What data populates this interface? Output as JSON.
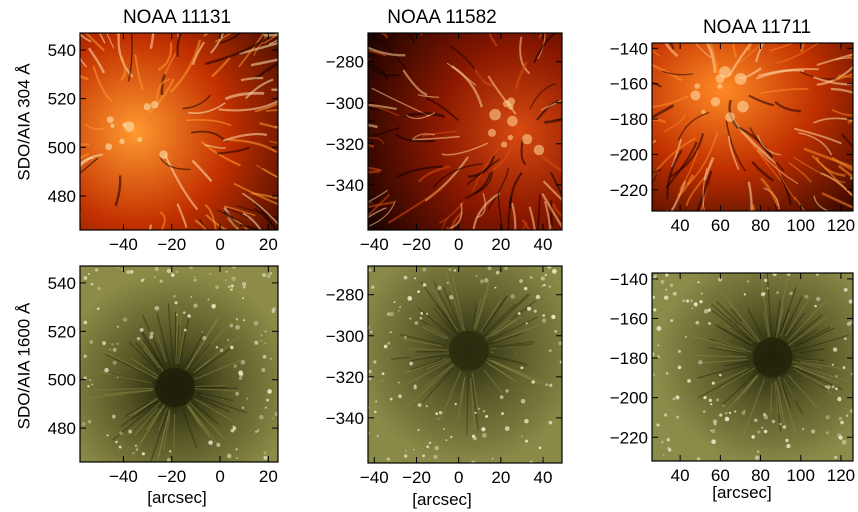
{
  "figure": {
    "row_labels": [
      "SDO/AIA 304 Å",
      "SDO/AIA 1600 Å"
    ],
    "column_titles": [
      "NOAA 11131",
      "NOAA 11582",
      "NOAA 11711"
    ],
    "xlabel": "[arcsec]"
  },
  "chart_data": [
    {
      "type": "heatmap",
      "title": "NOAA 11131",
      "channel": "SDO/AIA 304 Å",
      "colormap": "sdoaia304",
      "xlabel": "",
      "ylabel": "SDO/AIA 304 Å",
      "xlim": [
        -58,
        24
      ],
      "ylim": [
        466,
        547
      ],
      "xticks": [
        -40,
        -20,
        0,
        20
      ],
      "yticks": [
        480,
        500,
        520,
        540
      ],
      "colors": [
        "#1a0000",
        "#c23000",
        "#ff9a30",
        "#ffe3b0"
      ]
    },
    {
      "type": "heatmap",
      "title": "NOAA 11582",
      "channel": "SDO/AIA 304 Å",
      "colormap": "sdoaia304",
      "xlabel": "",
      "ylabel": "",
      "xlim": [
        -43,
        49
      ],
      "ylim": [
        -362,
        -266
      ],
      "xticks": [
        -40,
        -20,
        0,
        20,
        40
      ],
      "yticks": [
        -340,
        -320,
        -300,
        -280
      ],
      "colors": [
        "#120000",
        "#8a1800",
        "#d84a10",
        "#ffcf90"
      ]
    },
    {
      "type": "heatmap",
      "title": "NOAA 11711",
      "channel": "SDO/AIA 304 Å",
      "colormap": "sdoaia304",
      "xlabel": "",
      "ylabel": "",
      "xlim": [
        26,
        126
      ],
      "ylim": [
        -232,
        -137
      ],
      "xticks": [
        40,
        60,
        80,
        100,
        120
      ],
      "yticks": [
        -220,
        -200,
        -180,
        -160,
        -140
      ],
      "colors": [
        "#200000",
        "#c03000",
        "#ff8a25",
        "#ffd9a0"
      ]
    },
    {
      "type": "heatmap",
      "title": "",
      "channel": "SDO/AIA 1600 Å",
      "colormap": "sdoaia1600",
      "xlabel": "[arcsec]",
      "ylabel": "SDO/AIA 1600 Å",
      "xlim": [
        -58,
        24
      ],
      "ylim": [
        466,
        547
      ],
      "xticks": [
        -40,
        -20,
        0,
        20
      ],
      "yticks": [
        480,
        500,
        520,
        540
      ],
      "colors": [
        "#1e1e08",
        "#5a5a28",
        "#8c8c48",
        "#eaeacc"
      ]
    },
    {
      "type": "heatmap",
      "title": "",
      "channel": "SDO/AIA 1600 Å",
      "colormap": "sdoaia1600",
      "xlabel": "[arcsec]",
      "ylabel": "",
      "xlim": [
        -43,
        49
      ],
      "ylim": [
        -362,
        -266
      ],
      "xticks": [
        -40,
        -20,
        0,
        20,
        40
      ],
      "yticks": [
        -340,
        -320,
        -300,
        -280
      ],
      "colors": [
        "#2a2a0e",
        "#5e5e2c",
        "#8a8a48",
        "#eeeed0"
      ]
    },
    {
      "type": "heatmap",
      "title": "",
      "channel": "SDO/AIA 1600 Å",
      "colormap": "sdoaia1600",
      "xlabel": "[arcsec]",
      "ylabel": "",
      "xlim": [
        26,
        126
      ],
      "ylim": [
        -232,
        -137
      ],
      "xticks": [
        40,
        60,
        80,
        100,
        120
      ],
      "yticks": [
        -220,
        -200,
        -180,
        -160,
        -140
      ],
      "colors": [
        "#222209",
        "#5c5c2a",
        "#8c8c4a",
        "#eeeed2"
      ]
    }
  ]
}
